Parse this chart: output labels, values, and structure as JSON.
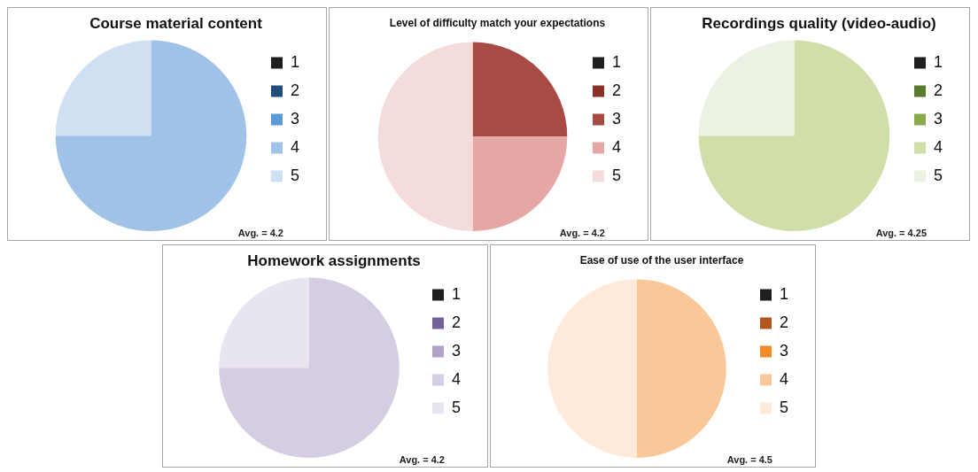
{
  "chart_data": [
    {
      "type": "pie",
      "title": "Course material content",
      "categories": [
        "1",
        "2",
        "3",
        "4",
        "5"
      ],
      "values": [
        0,
        0,
        0,
        75,
        25
      ],
      "colors": [
        "#1f1f1f",
        "#1f4e79",
        "#5b9bd5",
        "#9fc2e6",
        "#cfe0f2"
      ],
      "legend": "right",
      "annotations": [
        "Avg. = 4.2"
      ]
    },
    {
      "type": "pie",
      "title": "Level of difficulty match your expectations",
      "categories": [
        "1",
        "2",
        "3",
        "4",
        "5"
      ],
      "values": [
        0,
        0,
        25,
        25,
        50
      ],
      "colors": [
        "#1f1f1f",
        "#8b302b",
        "#a84b44",
        "#e4a7a6",
        "#f3dcdb"
      ],
      "legend": "right",
      "annotations": [
        "Avg. = 4.2"
      ]
    },
    {
      "type": "pie",
      "title": "Recordings quality (video-audio)",
      "categories": [
        "1",
        "2",
        "3",
        "4",
        "5"
      ],
      "values": [
        0,
        0,
        0,
        75,
        25
      ],
      "colors": [
        "#1f1f1f",
        "#5a7a2e",
        "#8aab4c",
        "#d0dea9",
        "#ecf2e3"
      ],
      "legend": "right",
      "annotations": [
        "Avg. = 4.25"
      ]
    },
    {
      "type": "pie",
      "title": "Homework assignments",
      "categories": [
        "1",
        "2",
        "3",
        "4",
        "5"
      ],
      "values": [
        0,
        0,
        0,
        75,
        25
      ],
      "colors": [
        "#1f1f1f",
        "#74609a",
        "#b3a2c7",
        "#d5cde2",
        "#e9e5f0"
      ],
      "legend": "right",
      "annotations": [
        "Avg. = 4.2"
      ]
    },
    {
      "type": "pie",
      "title": "Ease of use of the user interface",
      "categories": [
        "1",
        "2",
        "3",
        "4",
        "5"
      ],
      "values": [
        0,
        0,
        0,
        50,
        50
      ],
      "colors": [
        "#1f1f1f",
        "#b4561f",
        "#f38b2b",
        "#fac898",
        "#fdeadb"
      ],
      "legend": "right",
      "annotations": [
        "Avg. = 4.5"
      ]
    }
  ]
}
